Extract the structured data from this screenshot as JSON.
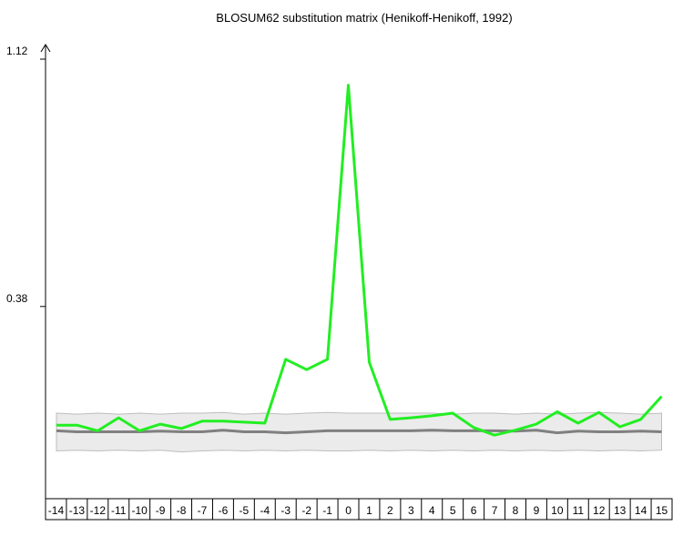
{
  "chart_data": {
    "type": "line",
    "title": "BLOSUM62 substitution matrix (Henikoff-Henikoff, 1992)",
    "xlabel": "",
    "ylabel": "",
    "x": [
      -14,
      -13,
      -12,
      -11,
      -10,
      -9,
      -8,
      -7,
      -6,
      -5,
      -4,
      -3,
      -2,
      -1,
      0,
      1,
      2,
      3,
      4,
      5,
      6,
      7,
      8,
      9,
      10,
      11,
      12,
      13,
      14,
      15
    ],
    "ytick_labels": [
      "0.38",
      "1.12"
    ],
    "ylim": [
      -0.195,
      1.12
    ],
    "series": [
      {
        "color": "#22ee22",
        "values": [
          0.025,
          0.025,
          0.008,
          0.047,
          0.008,
          0.028,
          0.015,
          0.037,
          0.037,
          0.034,
          0.031,
          0.222,
          0.191,
          0.222,
          1.042,
          0.213,
          0.042,
          0.047,
          0.053,
          0.061,
          0.018,
          -0.005,
          0.01,
          0.028,
          0.065,
          0.031,
          0.063,
          0.02,
          0.042,
          0.111
        ]
      },
      {
        "color": "#808080",
        "values": [
          0.008,
          0.005,
          0.005,
          0.005,
          0.005,
          0.007,
          0.005,
          0.005,
          0.01,
          0.005,
          0.005,
          0.002,
          0.005,
          0.008,
          0.008,
          0.008,
          0.008,
          0.008,
          0.01,
          0.008,
          0.008,
          0.008,
          0.007,
          0.01,
          0.002,
          0.007,
          0.005,
          0.005,
          0.007,
          0.005
        ]
      }
    ],
    "band": {
      "color": "#ebebeb",
      "upper": [
        0.061,
        0.058,
        0.061,
        0.058,
        0.061,
        0.058,
        0.061,
        0.061,
        0.063,
        0.058,
        0.061,
        0.058,
        0.061,
        0.063,
        0.061,
        0.061,
        0.061,
        0.061,
        0.061,
        0.058,
        0.061,
        0.061,
        0.058,
        0.061,
        0.058,
        0.061,
        0.063,
        0.061,
        0.058,
        0.061
      ],
      "lower": [
        -0.052,
        -0.05,
        -0.052,
        -0.05,
        -0.052,
        -0.05,
        -0.055,
        -0.052,
        -0.05,
        -0.052,
        -0.05,
        -0.052,
        -0.05,
        -0.052,
        -0.052,
        -0.05,
        -0.052,
        -0.05,
        -0.052,
        -0.05,
        -0.052,
        -0.05,
        -0.052,
        -0.05,
        -0.052,
        -0.05,
        -0.052,
        -0.05,
        -0.052,
        -0.05
      ]
    }
  }
}
